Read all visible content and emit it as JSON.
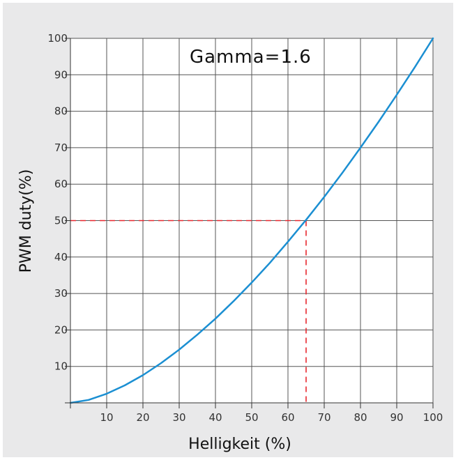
{
  "chart_data": {
    "type": "line",
    "title": "",
    "annotation": "Gamma=1.6",
    "xlabel": "Helligkeit (%)",
    "ylabel": "PWM duty(%)",
    "xlim": [
      0,
      100
    ],
    "ylim": [
      0,
      100
    ],
    "x_ticks": [
      0,
      10,
      20,
      30,
      40,
      50,
      60,
      70,
      80,
      90,
      100
    ],
    "x_tick_labels": [
      "",
      "10",
      "20",
      "30",
      "40",
      "50",
      "60",
      "70",
      "80",
      "90",
      "100"
    ],
    "y_ticks": [
      0,
      10,
      20,
      30,
      40,
      50,
      60,
      70,
      80,
      90,
      100
    ],
    "y_tick_labels": [
      "",
      "10",
      "20",
      "30",
      "40",
      "50",
      "60",
      "70",
      "80",
      "90",
      "100"
    ],
    "grid": true,
    "series": [
      {
        "color": "#1b8fd2",
        "x": [
          0,
          5,
          10,
          15,
          20,
          25,
          30,
          35,
          40,
          45,
          50,
          55,
          60,
          65,
          70,
          75,
          80,
          85,
          90,
          95,
          100
        ],
        "y": [
          0,
          0.8,
          2.5,
          4.8,
          7.6,
          10.9,
          14.6,
          18.7,
          23.1,
          27.9,
          33.0,
          38.4,
          44.2,
          50.2,
          56.5,
          63.1,
          70.0,
          77.1,
          84.5,
          92.1,
          100
        ]
      }
    ],
    "reference_point": {
      "x": 65,
      "y": 50,
      "color": "#e8262d"
    }
  }
}
